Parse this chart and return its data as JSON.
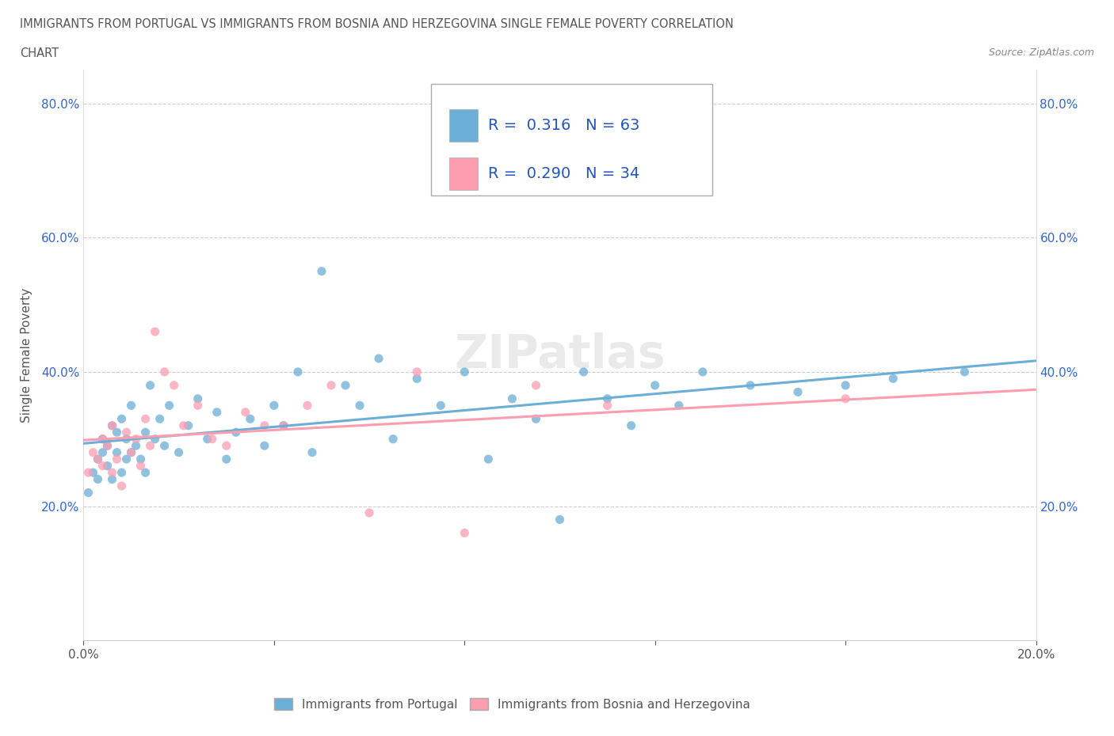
{
  "title_line1": "IMMIGRANTS FROM PORTUGAL VS IMMIGRANTS FROM BOSNIA AND HERZEGOVINA SINGLE FEMALE POVERTY CORRELATION",
  "title_line2": "CHART",
  "source_text": "Source: ZipAtlas.com",
  "ylabel": "Single Female Poverty",
  "xlim": [
    0.0,
    0.2
  ],
  "ylim": [
    0.0,
    0.85
  ],
  "color_portugal": "#6baed6",
  "color_bosnia": "#fc9db0",
  "line_color_portugal": "#6baed6",
  "line_color_bosnia": "#fc9db0",
  "R_portugal": 0.316,
  "N_portugal": 63,
  "R_bosnia": 0.29,
  "N_bosnia": 34,
  "legend_label_portugal": "Immigrants from Portugal",
  "legend_label_bosnia": "Immigrants from Bosnia and Herzegovina",
  "ytick_blue_color": "#3366cc",
  "title_color": "#555555",
  "source_color": "#888888",
  "portugal_x": [
    0.001,
    0.002,
    0.003,
    0.003,
    0.004,
    0.004,
    0.005,
    0.005,
    0.006,
    0.006,
    0.007,
    0.007,
    0.008,
    0.008,
    0.009,
    0.009,
    0.01,
    0.01,
    0.011,
    0.012,
    0.013,
    0.013,
    0.014,
    0.015,
    0.016,
    0.017,
    0.018,
    0.02,
    0.022,
    0.024,
    0.026,
    0.028,
    0.03,
    0.032,
    0.035,
    0.038,
    0.04,
    0.042,
    0.045,
    0.048,
    0.05,
    0.055,
    0.058,
    0.062,
    0.065,
    0.07,
    0.075,
    0.08,
    0.085,
    0.09,
    0.095,
    0.1,
    0.105,
    0.11,
    0.115,
    0.12,
    0.125,
    0.13,
    0.14,
    0.15,
    0.16,
    0.17,
    0.185
  ],
  "portugal_y": [
    0.22,
    0.25,
    0.27,
    0.24,
    0.28,
    0.3,
    0.26,
    0.29,
    0.32,
    0.24,
    0.28,
    0.31,
    0.25,
    0.33,
    0.27,
    0.3,
    0.28,
    0.35,
    0.29,
    0.27,
    0.31,
    0.25,
    0.38,
    0.3,
    0.33,
    0.29,
    0.35,
    0.28,
    0.32,
    0.36,
    0.3,
    0.34,
    0.27,
    0.31,
    0.33,
    0.29,
    0.35,
    0.32,
    0.4,
    0.28,
    0.55,
    0.38,
    0.35,
    0.42,
    0.3,
    0.39,
    0.35,
    0.4,
    0.27,
    0.36,
    0.33,
    0.18,
    0.4,
    0.36,
    0.32,
    0.38,
    0.35,
    0.4,
    0.38,
    0.37,
    0.38,
    0.39,
    0.4
  ],
  "bosnia_x": [
    0.001,
    0.002,
    0.003,
    0.004,
    0.004,
    0.005,
    0.006,
    0.006,
    0.007,
    0.008,
    0.009,
    0.01,
    0.011,
    0.012,
    0.013,
    0.014,
    0.015,
    0.017,
    0.019,
    0.021,
    0.024,
    0.027,
    0.03,
    0.034,
    0.038,
    0.042,
    0.047,
    0.052,
    0.06,
    0.07,
    0.08,
    0.095,
    0.11,
    0.16
  ],
  "bosnia_y": [
    0.25,
    0.28,
    0.27,
    0.3,
    0.26,
    0.29,
    0.32,
    0.25,
    0.27,
    0.23,
    0.31,
    0.28,
    0.3,
    0.26,
    0.33,
    0.29,
    0.46,
    0.4,
    0.38,
    0.32,
    0.35,
    0.3,
    0.29,
    0.34,
    0.32,
    0.32,
    0.35,
    0.38,
    0.19,
    0.4,
    0.16,
    0.38,
    0.35,
    0.36
  ]
}
